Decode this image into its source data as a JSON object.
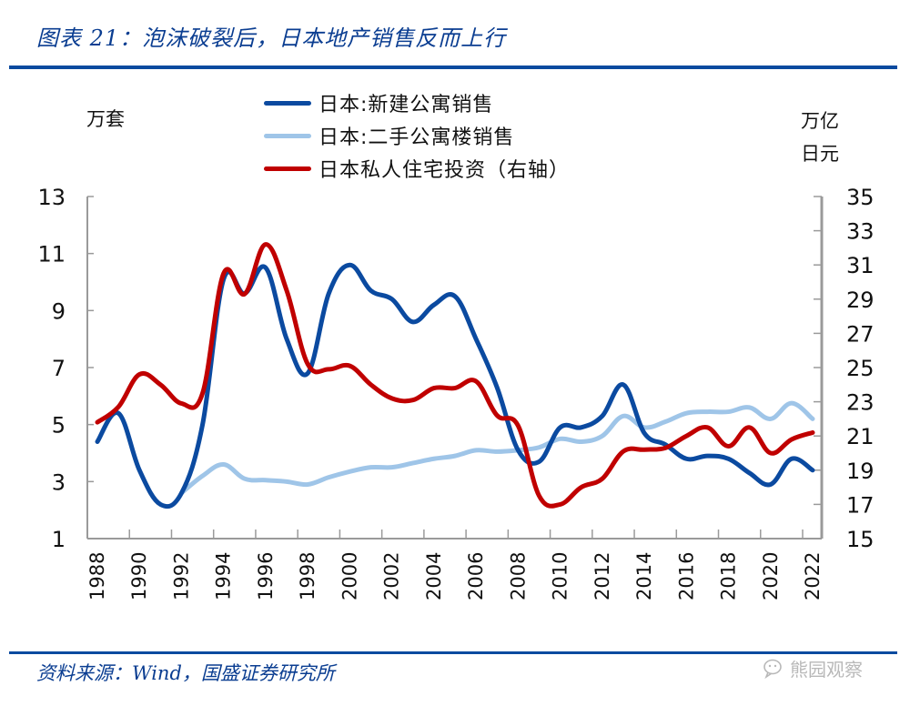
{
  "header": {
    "title": "图表 21：泡沫破裂后，日本地产销售反而上行"
  },
  "footer": {
    "source": "资料来源：Wind，国盛证券研究所",
    "watermark": "熊园观察",
    "watermark_icon": "wechat-icon"
  },
  "colors": {
    "accent": "#0a4a9f",
    "new_sales": "#0b4aa0",
    "used_sales": "#9fc5e8",
    "investment": "#c00000",
    "axis": "#9a9a9a"
  },
  "chart_data": {
    "type": "line",
    "title": "泡沫破裂后，日本地产销售反而上行",
    "ylabel_left": "万套",
    "ylabel_right": "万亿日元",
    "ylabel_right_lines": [
      "万亿",
      "日元"
    ],
    "ylim_left": [
      1,
      13
    ],
    "ylim_right": [
      15,
      35
    ],
    "yticks_left": [
      "13",
      "11",
      "9",
      "7",
      "5",
      "3",
      "1"
    ],
    "yticks_right": [
      "35",
      "33",
      "31",
      "29",
      "27",
      "25",
      "23",
      "21",
      "19",
      "17",
      "15"
    ],
    "x": [
      1988,
      1989,
      1990,
      1991,
      1992,
      1993,
      1994,
      1995,
      1996,
      1997,
      1998,
      1999,
      2000,
      2001,
      2002,
      2003,
      2004,
      2005,
      2006,
      2007,
      2008,
      2009,
      2010,
      2011,
      2012,
      2013,
      2014,
      2015,
      2016,
      2017,
      2018,
      2019,
      2020,
      2021,
      2022
    ],
    "xtick_labels": [
      "1988",
      "1990",
      "1992",
      "1994",
      "1996",
      "1998",
      "2000",
      "2002",
      "2004",
      "2006",
      "2008",
      "2010",
      "2012",
      "2014",
      "2016",
      "2018",
      "2020",
      "2022"
    ],
    "grid": false,
    "legend_position": "top-center",
    "series": [
      {
        "name": "日本:新建公寓销售",
        "axis": "left",
        "color": "#0b4aa0",
        "values": [
          4.4,
          5.4,
          3.4,
          2.2,
          2.6,
          5.0,
          10.1,
          9.6,
          10.5,
          8.0,
          6.8,
          9.6,
          10.6,
          9.7,
          9.4,
          8.6,
          9.2,
          9.5,
          8.0,
          6.3,
          4.1,
          3.7,
          4.9,
          4.9,
          5.3,
          6.4,
          4.7,
          4.3,
          3.8,
          3.9,
          3.8,
          3.3,
          2.9,
          3.8,
          3.4
        ]
      },
      {
        "name": "日本:二手公寓楼销售",
        "axis": "left",
        "color": "#9fc5e8",
        "values": [
          null,
          null,
          null,
          null,
          2.6,
          3.2,
          3.6,
          3.1,
          3.05,
          3.0,
          2.9,
          3.15,
          3.35,
          3.5,
          3.5,
          3.65,
          3.8,
          3.9,
          4.1,
          4.05,
          4.1,
          4.2,
          4.5,
          4.4,
          4.6,
          5.3,
          4.9,
          5.1,
          5.4,
          5.45,
          5.45,
          5.6,
          5.2,
          5.75,
          5.2
        ]
      },
      {
        "name": "日本私人住宅投资（右轴）",
        "axis": "right",
        "color": "#c00000",
        "values": [
          21.8,
          22.7,
          24.6,
          24.0,
          22.9,
          23.5,
          30.5,
          29.3,
          32.2,
          29.5,
          25.2,
          24.9,
          25.1,
          24.0,
          23.2,
          23.1,
          23.8,
          23.8,
          24.2,
          22.2,
          21.6,
          17.5,
          17.0,
          18.0,
          18.5,
          20.1,
          20.2,
          20.3,
          21.0,
          21.5,
          20.4,
          21.5,
          20.0,
          20.8,
          21.2
        ]
      }
    ]
  }
}
